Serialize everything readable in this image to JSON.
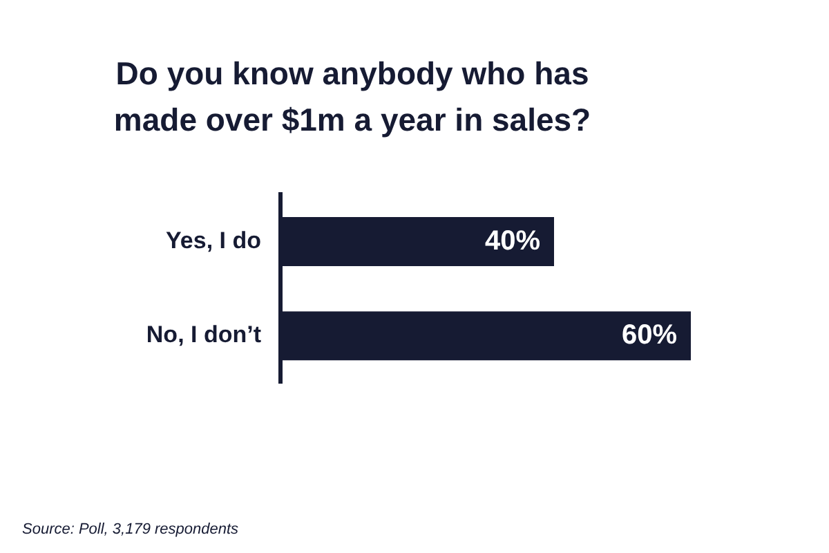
{
  "chart_data": {
    "type": "bar",
    "orientation": "horizontal",
    "title": "Do you know anybody who has\nmade over $1m a year in sales?",
    "categories": [
      "Yes, I do",
      "No, I don’t"
    ],
    "values": [
      40,
      60
    ],
    "value_labels": [
      "40%",
      "60%"
    ],
    "color": "#161b33",
    "xlim": [
      0,
      60
    ],
    "grid": false,
    "legend": false,
    "tick_labels": "y",
    "annotations": [
      "Source: Poll, 3,179 respondents"
    ]
  }
}
